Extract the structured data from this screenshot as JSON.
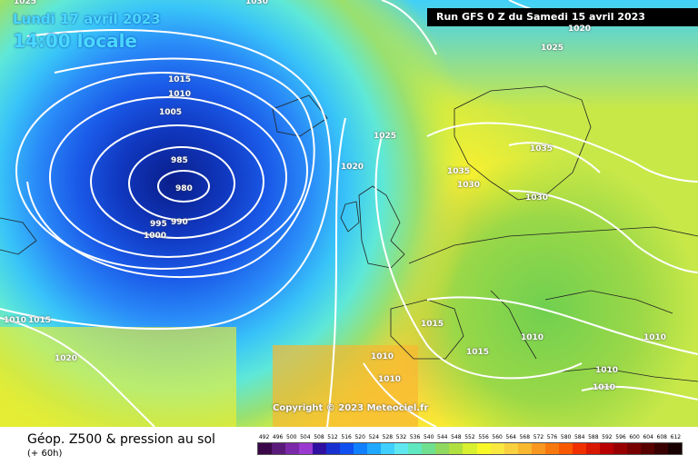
{
  "map": {
    "date_line": "Lundi 17 avril 2023",
    "time_line": "14:00 locale",
    "run_info": "Run GFS 0 Z du Samedi 15 avril 2023",
    "copyright": "Copyright © 2023 Meteociel.fr",
    "low_center_label": "980",
    "isobar_labels": [
      "1025",
      "1030",
      "1020",
      "1025",
      "1015",
      "1010",
      "1005",
      "985",
      "995",
      "990",
      "1000",
      "1025",
      "1020",
      "1035",
      "1035",
      "1030",
      "1030",
      "1010",
      "1015",
      "1020",
      "1015",
      "1015",
      "1010",
      "1010",
      "1010",
      "1010",
      "1010",
      "1010"
    ]
  },
  "footer": {
    "product_title": "Géop. Z500 & pression au sol",
    "product_subtitle": "(+ 60h)"
  },
  "legend": {
    "values": [
      "492",
      "496",
      "500",
      "504",
      "508",
      "512",
      "516",
      "520",
      "524",
      "528",
      "532",
      "536",
      "540",
      "544",
      "548",
      "552",
      "556",
      "560",
      "564",
      "568",
      "572",
      "576",
      "580",
      "584",
      "588",
      "592",
      "596",
      "600",
      "604",
      "608",
      "612"
    ],
    "colors": [
      "#3a0848",
      "#5a1a7a",
      "#7a2aa8",
      "#9a3ad0",
      "#3010a0",
      "#1830d0",
      "#1050f0",
      "#1080ff",
      "#20a8ff",
      "#40d0ff",
      "#60e8f0",
      "#60e8c0",
      "#70e090",
      "#90d860",
      "#b0e040",
      "#d8f030",
      "#f8f828",
      "#f8e840",
      "#f8d040",
      "#f8b830",
      "#f89820",
      "#f87810",
      "#f85800",
      "#f03000",
      "#d81800",
      "#b80000",
      "#980000",
      "#780000",
      "#580000",
      "#380000",
      "#180000"
    ]
  }
}
